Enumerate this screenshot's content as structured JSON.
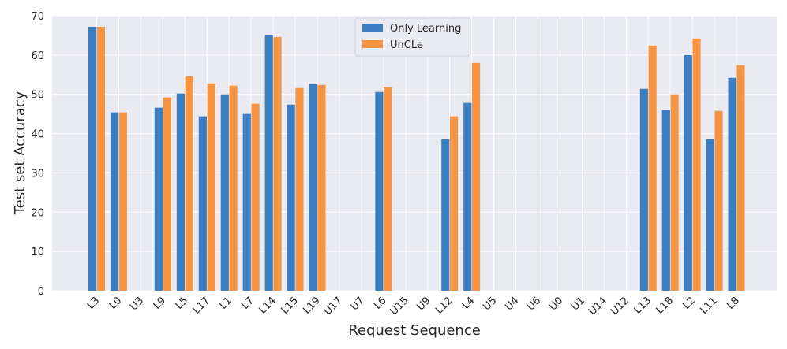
{
  "chart_data": {
    "type": "bar",
    "xlabel": "Request Sequence",
    "ylabel": "Test set Accuracy",
    "ylim": [
      0,
      70
    ],
    "yticks": [
      0,
      10,
      20,
      30,
      40,
      50,
      60,
      70
    ],
    "grid": true,
    "legend_position": "top-center",
    "categories": [
      "L3",
      "L0",
      "U3",
      "L9",
      "L5",
      "L17",
      "L1",
      "L7",
      "L14",
      "L15",
      "L19",
      "U17",
      "U7",
      "L6",
      "U15",
      "U9",
      "L12",
      "L4",
      "U5",
      "U4",
      "U6",
      "U0",
      "U1",
      "U14",
      "U12",
      "L13",
      "L18",
      "L2",
      "L11",
      "L8"
    ],
    "series": [
      {
        "name": "Only Learning",
        "color": "#3a7dc0",
        "values": [
          67.2,
          45.4,
          null,
          46.6,
          50.2,
          44.4,
          50.0,
          45.0,
          65.0,
          47.4,
          52.6,
          null,
          null,
          50.6,
          null,
          null,
          38.6,
          47.8,
          null,
          null,
          null,
          null,
          null,
          null,
          null,
          51.4,
          46.0,
          60.0,
          38.6,
          54.2
        ]
      },
      {
        "name": "UnCLe",
        "color": "#f59442",
        "values": [
          67.2,
          45.4,
          null,
          49.2,
          54.6,
          52.8,
          52.2,
          47.6,
          64.6,
          51.6,
          52.4,
          null,
          null,
          51.8,
          null,
          null,
          44.4,
          58.0,
          null,
          null,
          null,
          null,
          null,
          null,
          null,
          62.4,
          50.0,
          64.2,
          45.8,
          57.4
        ]
      }
    ]
  }
}
